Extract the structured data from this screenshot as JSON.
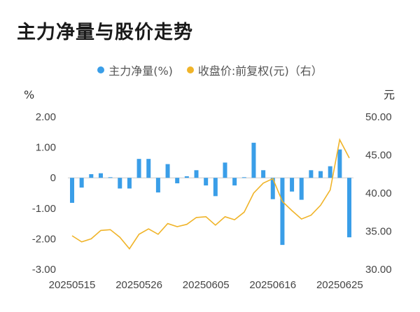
{
  "header": {
    "title": "主力净量与股价走势"
  },
  "colors": {
    "bar": "#3a9ee8",
    "line": "#f0b429",
    "gridZero": "#cccccc"
  },
  "chart_data": {
    "type": "bar+line",
    "left_unit": "%",
    "right_unit": "元",
    "legend": [
      {
        "label": "主力净量(%)",
        "color": "#3a9ee8"
      },
      {
        "label": "收盘价:前复权(元)（右）",
        "color": "#f0b429"
      }
    ],
    "left_ylim": [
      -3,
      2
    ],
    "right_ylim": [
      30,
      50
    ],
    "left_ticks": [
      "2.00",
      "1.00",
      "0",
      "-1.00",
      "-2.00",
      "-3.00"
    ],
    "right_ticks": [
      "50.00",
      "45.00",
      "40.00",
      "35.00",
      "30.00"
    ],
    "x_tick_labels": [
      "20250515",
      "20250526",
      "20250605",
      "20250616",
      "20250625"
    ],
    "x_tick_indices": [
      0,
      7,
      14,
      21,
      28
    ],
    "series": [
      {
        "name": "主力净量(%)",
        "axis": "left",
        "type": "bar",
        "values": [
          -0.82,
          -0.32,
          0.12,
          0.15,
          0.02,
          -0.35,
          -0.35,
          0.62,
          0.62,
          -0.48,
          0.45,
          -0.18,
          0.05,
          0.25,
          -0.25,
          -0.6,
          0.5,
          -0.25,
          0.02,
          1.15,
          0.25,
          -0.7,
          -2.2,
          -0.45,
          -0.72,
          0.25,
          0.22,
          0.38,
          0.93,
          -1.95
        ]
      },
      {
        "name": "收盘价:前复权(元)（右）",
        "axis": "right",
        "type": "line",
        "values": [
          34.4,
          33.6,
          34.0,
          35.1,
          35.2,
          34.2,
          32.7,
          34.6,
          35.3,
          34.6,
          36.0,
          35.6,
          35.9,
          36.8,
          36.9,
          35.8,
          36.9,
          36.5,
          37.5,
          40.0,
          41.3,
          41.9,
          38.9,
          37.7,
          36.6,
          37.1,
          38.4,
          40.4,
          47.0,
          44.6
        ]
      }
    ]
  }
}
